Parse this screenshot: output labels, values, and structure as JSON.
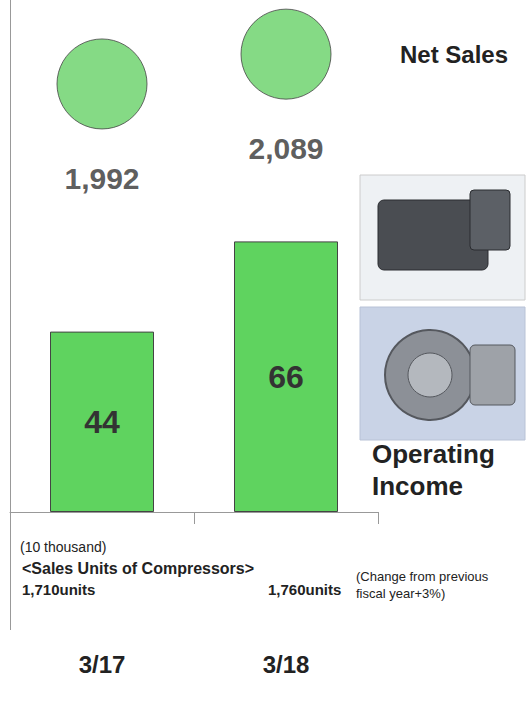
{
  "chart_data": {
    "type": "bar",
    "categories": [
      "3/17",
      "3/18"
    ],
    "series": [
      {
        "name": "Net Sales",
        "type": "scatter",
        "axis": "y2",
        "marker": "circle",
        "color": "#66d166",
        "values": [
          1992,
          2089
        ],
        "value_labels": [
          "1,992",
          "2,089"
        ]
      },
      {
        "name": "Operating Income",
        "type": "bar",
        "color": "#5fd35f",
        "values": [
          44,
          66
        ]
      }
    ],
    "ylim": [
      0,
      120
    ],
    "yticks": [],
    "y2lim": [
      600,
      2200
    ],
    "y2ticks": [],
    "grid": false,
    "tick_labels": false,
    "data_labels": true,
    "annotations": {
      "unit": "(10 thousand)",
      "heading": "<Sales Units of Compressors>",
      "units": [
        "1,710units",
        "1,760units"
      ],
      "change": "(Change from previous fiscal year+3%)"
    }
  }
}
